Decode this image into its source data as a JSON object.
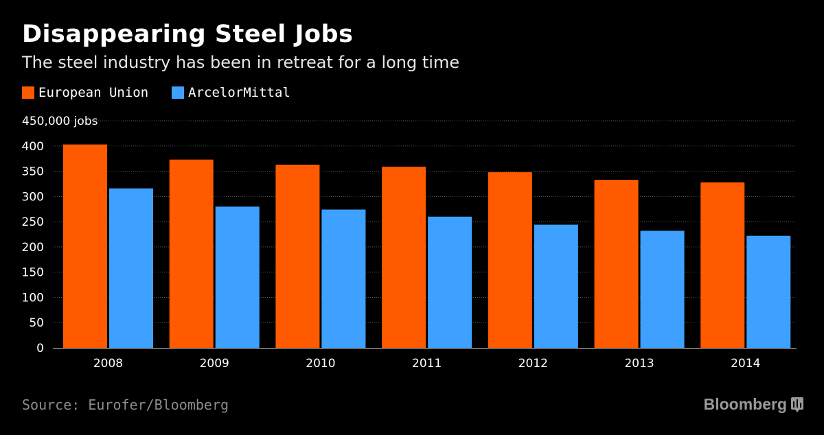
{
  "chart_data": {
    "type": "bar",
    "title": "Disappearing Steel Jobs",
    "subtitle": "The steel industry has been in retreat for a long time",
    "categories": [
      "2008",
      "2009",
      "2010",
      "2011",
      "2012",
      "2013",
      "2014"
    ],
    "series": [
      {
        "name": "European Union",
        "color": "#ff5a00",
        "values": [
          403,
          373,
          363,
          359,
          348,
          333,
          328
        ]
      },
      {
        "name": "ArcelorMittal",
        "color": "#3ea1ff",
        "values": [
          316,
          280,
          274,
          260,
          244,
          232,
          222
        ]
      }
    ],
    "ylim": [
      0,
      450
    ],
    "yticks": [
      0,
      50,
      100,
      150,
      200,
      250,
      300,
      350,
      400
    ],
    "ytick_labels": [
      "0",
      "50",
      "100",
      "150",
      "200",
      "250",
      "300",
      "350",
      "400"
    ],
    "ytop_label": "450,000 jobs",
    "grid": true,
    "legend": "top-left"
  },
  "source": "Source: Eurofer/Bloomberg",
  "brand": "Bloomberg",
  "colors": {
    "background": "#000000",
    "grid": "#555555"
  }
}
